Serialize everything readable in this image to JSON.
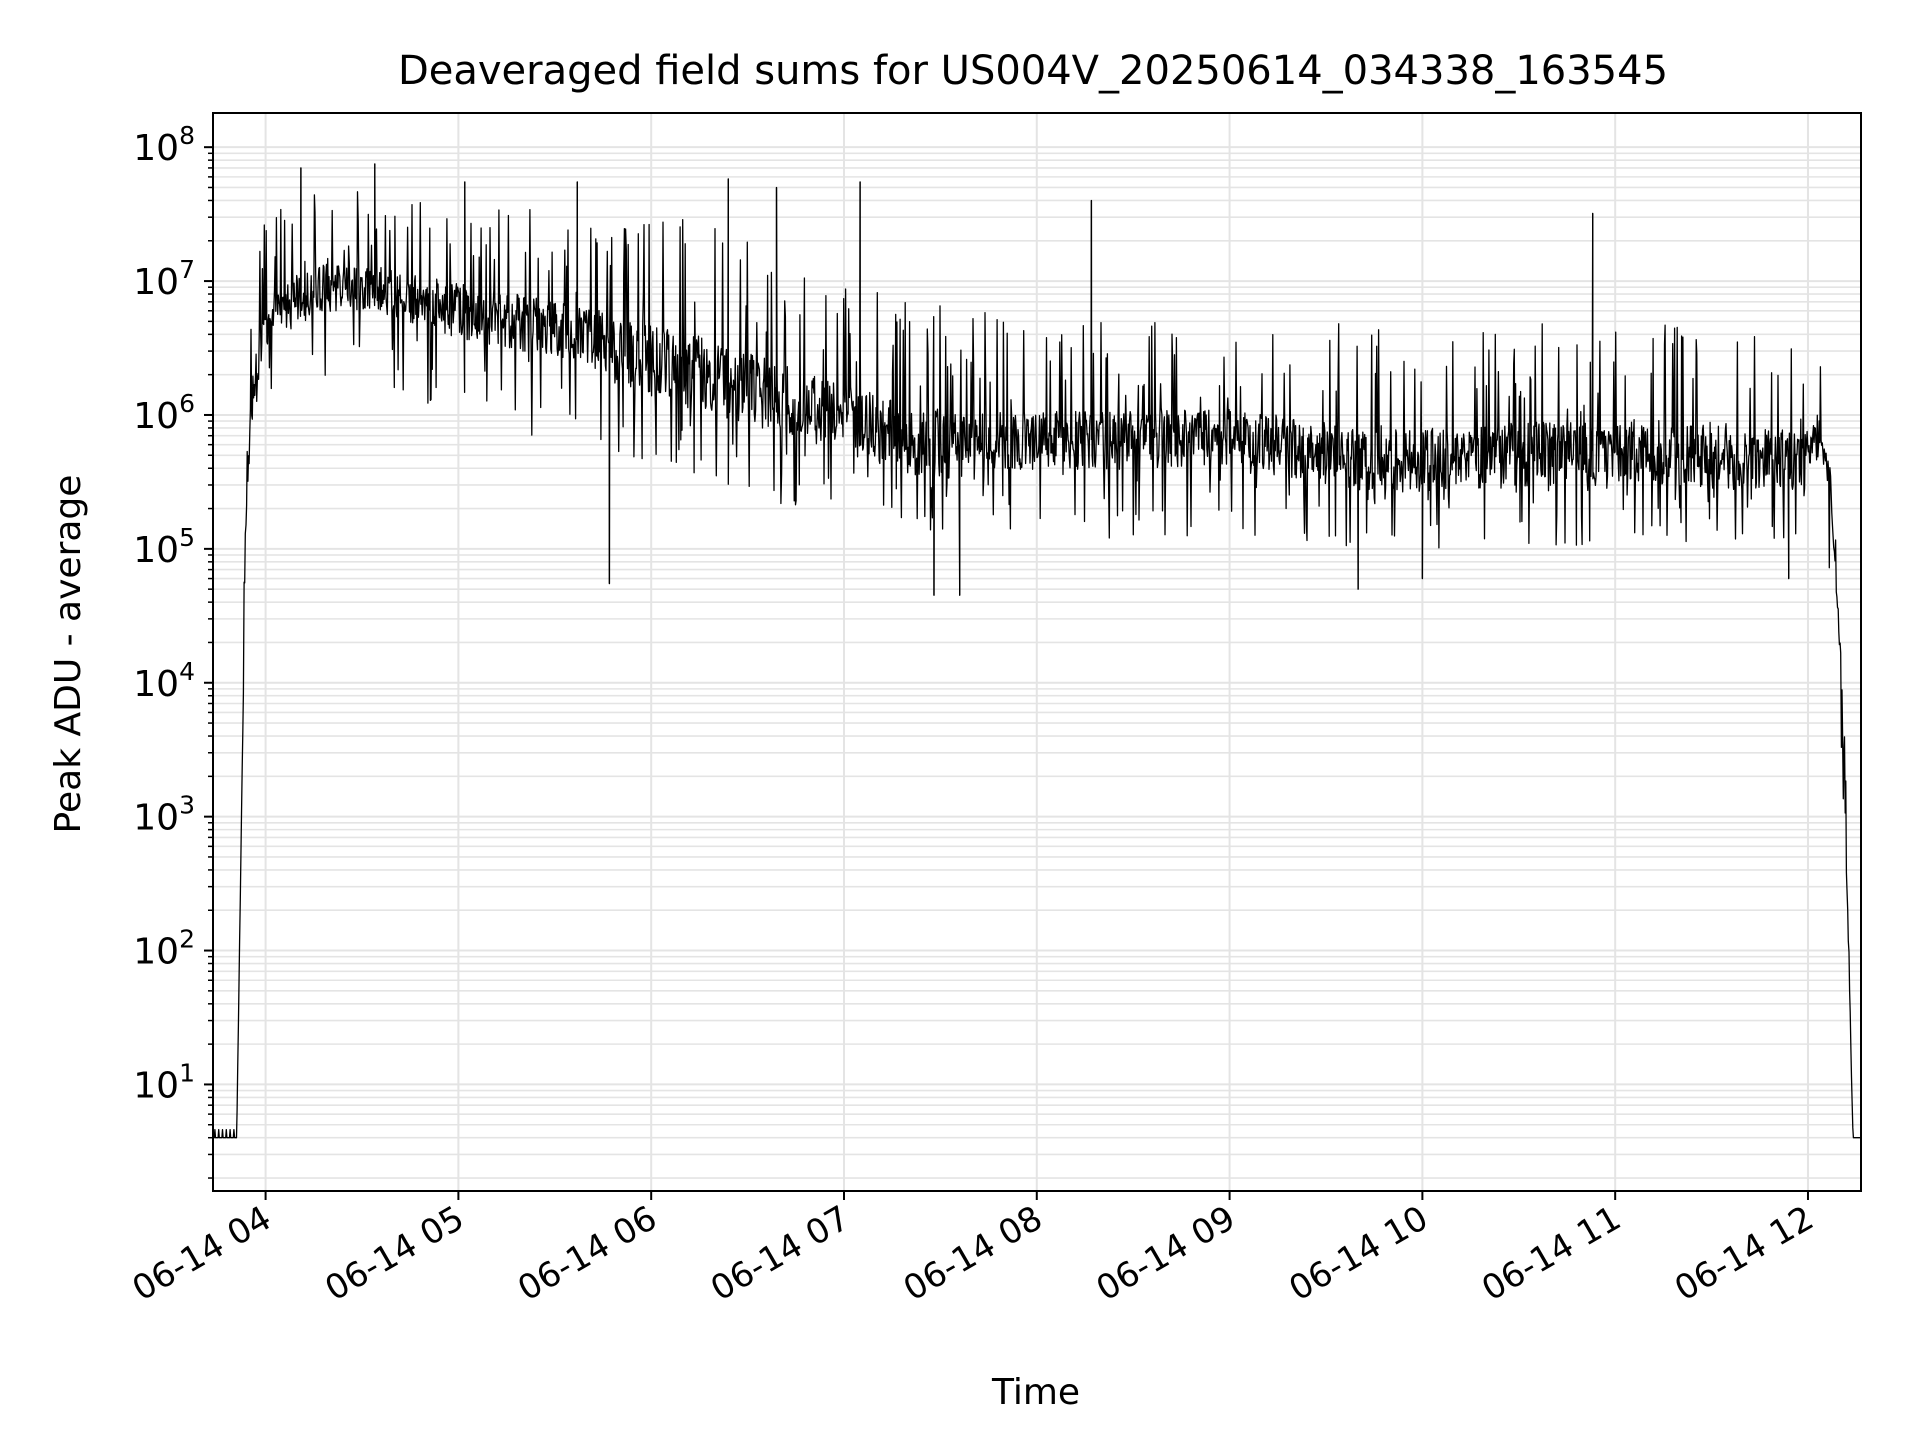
{
  "chart_data": {
    "type": "line",
    "title": "Deaveraged field sums for US004V_20250614_034338_163545",
    "xlabel": "Time",
    "ylabel": "Peak ADU - average",
    "yscale": "log",
    "ylim": [
      1.6,
      180000000
    ],
    "xlim": [
      "2025-06-14 03:43:38",
      "2025-06-14 12:16:30"
    ],
    "grid": "on (major and minor)",
    "x_ticks": [
      "06-14 04",
      "06-14 05",
      "06-14 06",
      "06-14 07",
      "06-14 08",
      "06-14 09",
      "06-14 10",
      "06-14 11",
      "06-14 12"
    ],
    "y_ticks": [
      {
        "base": "10",
        "exp": "1",
        "value": 10
      },
      {
        "base": "10",
        "exp": "2",
        "value": 100
      },
      {
        "base": "10",
        "exp": "3",
        "value": 1000
      },
      {
        "base": "10",
        "exp": "4",
        "value": 10000
      },
      {
        "base": "10",
        "exp": "5",
        "value": 100000
      },
      {
        "base": "10",
        "exp": "6",
        "value": 1000000
      },
      {
        "base": "10",
        "exp": "7",
        "value": 10000000
      },
      {
        "base": "10",
        "exp": "8",
        "value": 100000000
      }
    ],
    "series": [
      {
        "color": "#000000",
        "x": [
          "2025-06-14 03:43:38",
          "2025-06-14 03:51:00",
          "2025-06-14 03:52:30",
          "2025-06-14 03:54:00",
          "2025-06-14 03:56:00",
          "2025-06-14 03:58:00",
          "2025-06-14 04:00:00",
          "2025-06-14 04:10:00",
          "2025-06-14 04:20:00",
          "2025-06-14 04:30:00",
          "2025-06-14 04:40:00",
          "2025-06-14 04:50:00",
          "2025-06-14 05:00:00",
          "2025-06-14 05:15:00",
          "2025-06-14 05:30:00",
          "2025-06-14 05:45:00",
          "2025-06-14 06:00:00",
          "2025-06-14 06:15:00",
          "2025-06-14 06:30:00",
          "2025-06-14 06:45:00",
          "2025-06-14 07:00:00",
          "2025-06-14 07:15:00",
          "2025-06-14 07:30:00",
          "2025-06-14 07:45:00",
          "2025-06-14 08:00:00",
          "2025-06-14 08:30:00",
          "2025-06-14 09:00:00",
          "2025-06-14 09:30:00",
          "2025-06-14 10:00:00",
          "2025-06-14 10:30:00",
          "2025-06-14 11:00:00",
          "2025-06-14 11:30:00",
          "2025-06-14 12:00:00",
          "2025-06-14 12:04:00",
          "2025-06-14 12:07:00",
          "2025-06-14 12:10:00",
          "2025-06-14 12:12:00",
          "2025-06-14 12:14:00",
          "2025-06-14 12:16:30"
        ],
        "y": [
          4,
          4,
          1000,
          300000,
          1500000,
          3000000,
          5000000,
          8000000,
          9000000,
          9000000,
          8000000,
          7000000,
          6000000,
          5000000,
          4500000,
          3500000,
          2500000,
          2000000,
          1600000,
          1200000,
          1000000,
          700000,
          600000,
          600000,
          650000,
          650000,
          700000,
          500000,
          450000,
          500000,
          550000,
          500000,
          450000,
          700000,
          300000,
          20000,
          500,
          4,
          4
        ],
        "envelope_high": [
          4,
          4,
          1000,
          2000000,
          10000000,
          20000000,
          30000000,
          40000000,
          50000000,
          50000000,
          40000000,
          40000000,
          40000000,
          40000000,
          30000000,
          30000000,
          30000000,
          30000000,
          20000000,
          15000000,
          10000000,
          8000000,
          7000000,
          6000000,
          5000000,
          5000000,
          5000000,
          5000000,
          4000000,
          5000000,
          5000000,
          5000000,
          4000000,
          2500000,
          1000000,
          50000,
          2000,
          4,
          4
        ],
        "envelope_low": [
          4,
          4,
          1000,
          200000,
          500000,
          800000,
          1000000,
          1500000,
          2000000,
          2000000,
          1500000,
          1200000,
          1000000,
          800000,
          600000,
          500000,
          400000,
          300000,
          250000,
          200000,
          180000,
          150000,
          130000,
          120000,
          120000,
          120000,
          120000,
          100000,
          100000,
          100000,
          110000,
          110000,
          110000,
          250000,
          50000,
          5000,
          200,
          4,
          4
        ],
        "peaks": [
          {
            "t": "2025-06-14 04:11:00",
            "y": 70000000
          },
          {
            "t": "2025-06-14 04:34:00",
            "y": 75000000
          },
          {
            "t": "2025-06-14 05:02:00",
            "y": 55000000
          },
          {
            "t": "2025-06-14 05:37:00",
            "y": 55000000
          },
          {
            "t": "2025-06-14 06:24:00",
            "y": 58000000
          },
          {
            "t": "2025-06-14 06:39:00",
            "y": 50000000
          },
          {
            "t": "2025-06-14 07:05:00",
            "y": 55000000
          },
          {
            "t": "2025-06-14 08:17:00",
            "y": 40000000
          },
          {
            "t": "2025-06-14 10:53:00",
            "y": 32000000
          }
        ],
        "dips": [
          {
            "t": "2025-06-14 05:47:00",
            "y": 55000
          },
          {
            "t": "2025-06-14 07:28:00",
            "y": 45000
          },
          {
            "t": "2025-06-14 07:36:00",
            "y": 45000
          },
          {
            "t": "2025-06-14 09:40:00",
            "y": 50000
          },
          {
            "t": "2025-06-14 10:00:00",
            "y": 60000
          },
          {
            "t": "2025-06-14 11:54:00",
            "y": 60000
          }
        ]
      }
    ]
  }
}
